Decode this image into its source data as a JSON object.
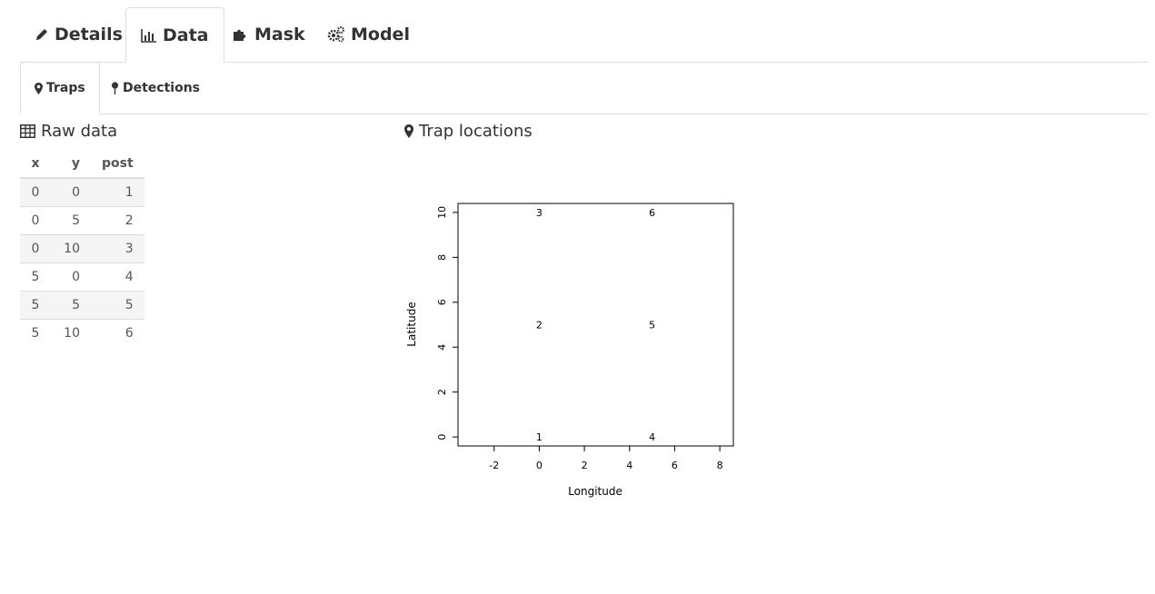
{
  "main_tabs": [
    {
      "label": "Details",
      "icon": "pencil-icon"
    },
    {
      "label": "Data",
      "icon": "bar-chart-icon"
    },
    {
      "label": "Mask",
      "icon": "puzzle-icon"
    },
    {
      "label": "Model",
      "icon": "gears-icon"
    }
  ],
  "sub_tabs": [
    {
      "label": "Traps",
      "icon": "map-marker-icon"
    },
    {
      "label": "Detections",
      "icon": "pushpin-icon"
    }
  ],
  "raw_data": {
    "title": "Raw data",
    "headers": [
      "x",
      "y",
      "post"
    ],
    "rows": [
      [
        "0",
        "0",
        "1"
      ],
      [
        "0",
        "5",
        "2"
      ],
      [
        "0",
        "10",
        "3"
      ],
      [
        "5",
        "0",
        "4"
      ],
      [
        "5",
        "5",
        "5"
      ],
      [
        "5",
        "10",
        "6"
      ]
    ]
  },
  "trap_panel": {
    "title": "Trap locations"
  },
  "chart_data": {
    "type": "scatter",
    "xlabel": "Longitude",
    "ylabel": "Latitude",
    "xlim": [
      -3.6,
      8.6
    ],
    "ylim": [
      -0.4,
      10.4
    ],
    "xticks": [
      -2,
      0,
      2,
      4,
      6,
      8
    ],
    "yticks": [
      0,
      2,
      4,
      6,
      8,
      10
    ],
    "grid": false,
    "points": [
      {
        "x": 0,
        "y": 0,
        "label": "1"
      },
      {
        "x": 0,
        "y": 5,
        "label": "2"
      },
      {
        "x": 0,
        "y": 10,
        "label": "3"
      },
      {
        "x": 5,
        "y": 0,
        "label": "4"
      },
      {
        "x": 5,
        "y": 5,
        "label": "5"
      },
      {
        "x": 5,
        "y": 10,
        "label": "6"
      }
    ]
  }
}
